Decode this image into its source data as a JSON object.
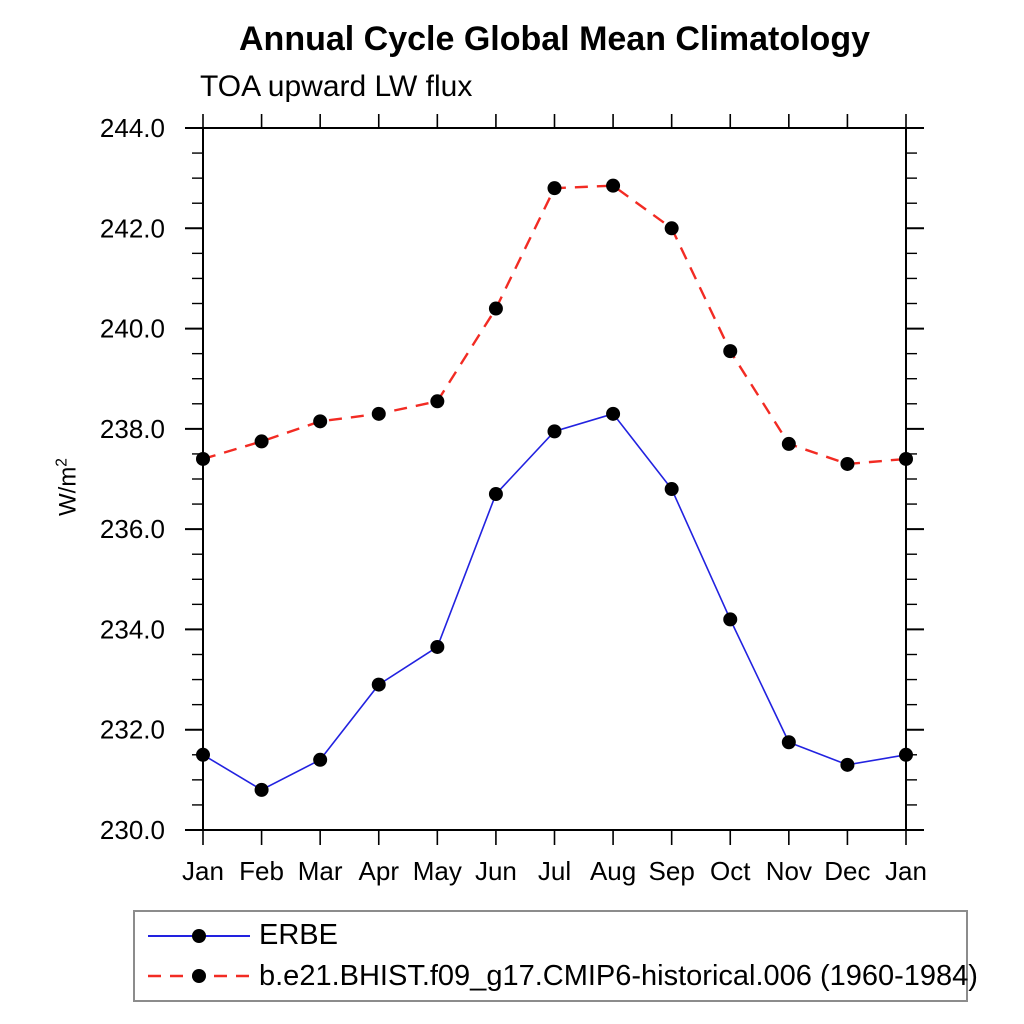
{
  "chart_data": {
    "type": "line",
    "title": "Annual Cycle Global Mean Climatology",
    "subtitle": "TOA upward LW flux",
    "ylabel_base": "W/m",
    "ylabel_exponent": "2",
    "x_categories": [
      "Jan",
      "Feb",
      "Mar",
      "Apr",
      "May",
      "Jun",
      "Jul",
      "Aug",
      "Sep",
      "Oct",
      "Nov",
      "Dec",
      "Jan"
    ],
    "ylim": [
      230.0,
      244.0
    ],
    "ytick_major_interval": 2.0,
    "ytick_minor_interval": 0.5,
    "ytick_major_labels": [
      "230.0",
      "232.0",
      "234.0",
      "236.0",
      "238.0",
      "240.0",
      "242.0",
      "244.0"
    ],
    "grid": false,
    "legend_position": "bottom-left",
    "marker": {
      "shape": "circle",
      "color": "#000000"
    },
    "axis_color": "#000000",
    "series": [
      {
        "name": "ERBE",
        "color": "#2222e0",
        "style": "solid",
        "values": [
          231.5,
          230.8,
          231.4,
          232.9,
          233.65,
          236.7,
          237.95,
          238.3,
          236.8,
          234.2,
          231.75,
          231.3,
          231.5
        ]
      },
      {
        "name": "b.e21.BHIST.f09_g17.CMIP6-historical.006 (1960-1984)",
        "color": "#f22b23",
        "style": "dashed",
        "dash": "13 9",
        "values": [
          237.4,
          237.75,
          238.15,
          238.3,
          238.55,
          240.4,
          242.8,
          242.85,
          242.0,
          239.55,
          237.7,
          237.3,
          237.4
        ]
      }
    ]
  }
}
